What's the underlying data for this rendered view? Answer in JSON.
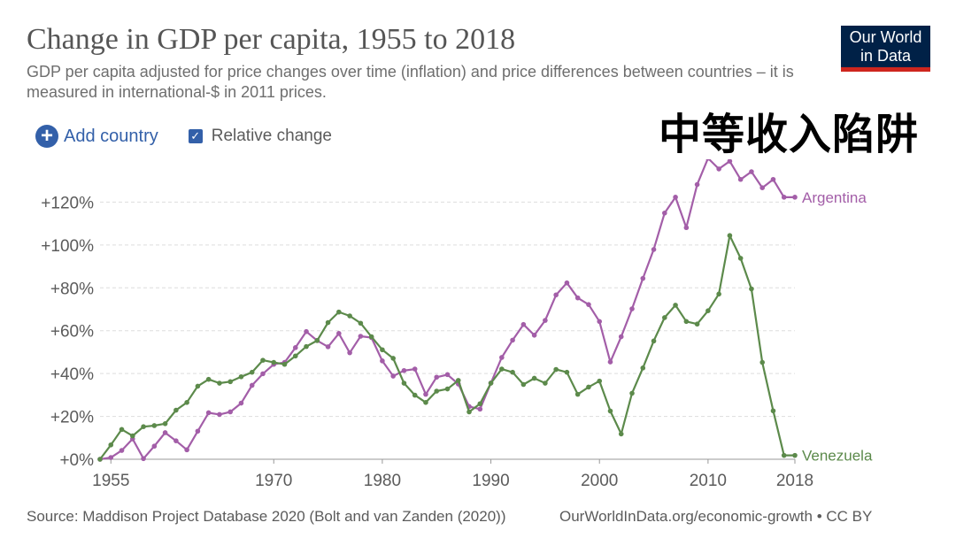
{
  "header": {
    "title": "Change in GDP per capita, 1955 to 2018",
    "subtitle": "GDP per capita adjusted for price changes over time (inflation) and price differences between countries – it is measured in international-$ in 2011 prices.",
    "logo_line1": "Our World",
    "logo_line2": "in Data"
  },
  "overlay_text": "中等收入陷阱",
  "controls": {
    "add_country_label": "Add country",
    "relative_change_label": "Relative change",
    "relative_change_checked": true
  },
  "footer": {
    "source": "Source: Maddison Project Database 2020 (Bolt and van Zanden (2020))",
    "url": "OurWorldInData.org/economic-growth • CC BY"
  },
  "colors": {
    "argentina": "#a35ea8",
    "venezuela": "#5c8a4b",
    "accent": "#3360a9"
  },
  "chart_data": {
    "type": "line",
    "x_range": [
      1954,
      2018
    ],
    "ylim": [
      0,
      140
    ],
    "y_ticks": [
      0,
      20,
      40,
      60,
      80,
      100,
      120
    ],
    "y_tick_labels": [
      "+0%",
      "+20%",
      "+40%",
      "+60%",
      "+80%",
      "+100%",
      "+120%"
    ],
    "x_ticks": [
      1955,
      1970,
      1980,
      1990,
      2000,
      2010,
      2018
    ],
    "x_tick_labels": [
      "1955",
      "1970",
      "1980",
      "1990",
      "2000",
      "2010",
      "2018"
    ],
    "grid": "horizontal-dashed",
    "x": [
      1954,
      1955,
      1956,
      1957,
      1958,
      1959,
      1960,
      1961,
      1962,
      1963,
      1964,
      1965,
      1966,
      1967,
      1968,
      1969,
      1970,
      1971,
      1972,
      1973,
      1974,
      1975,
      1976,
      1977,
      1978,
      1979,
      1980,
      1981,
      1982,
      1983,
      1984,
      1985,
      1986,
      1987,
      1988,
      1989,
      1990,
      1991,
      1992,
      1993,
      1994,
      1995,
      1996,
      1997,
      1998,
      1999,
      2000,
      2001,
      2002,
      2003,
      2004,
      2005,
      2006,
      2007,
      2008,
      2009,
      2010,
      2011,
      2012,
      2013,
      2014,
      2015,
      2016,
      2017,
      2018
    ],
    "series": [
      {
        "name": "Argentina",
        "values": [
          0,
          0.8,
          4.1,
          9.5,
          0.3,
          6.1,
          12.4,
          8.6,
          4.4,
          13.1,
          21.7,
          20.9,
          22.1,
          26.2,
          34.5,
          39.9,
          44.3,
          45.2,
          52.1,
          59.6,
          55.4,
          52.5,
          58.7,
          49.7,
          57.4,
          56.8,
          45.9,
          38.8,
          41.4,
          42.1,
          30.3,
          38.3,
          39.5,
          35.1,
          24.6,
          23.4,
          35.6,
          47.5,
          55.6,
          62.9,
          57.9,
          64.8,
          76.7,
          82.3,
          75.3,
          72.2,
          64.3,
          45.4,
          57.2,
          70.2,
          84.4,
          97.9,
          114.9,
          122.3,
          108.1,
          128.2,
          140.5,
          135.5,
          139.1,
          130.6,
          134.2,
          126.7,
          130.6,
          122.3,
          122.3
        ]
      },
      {
        "name": "Venezuela",
        "values": [
          0,
          6.7,
          13.9,
          10.9,
          15.2,
          15.7,
          16.6,
          22.9,
          26.5,
          34.1,
          37.3,
          35.5,
          36.2,
          38.5,
          40.6,
          46.2,
          45.2,
          44.3,
          48.2,
          52.6,
          55.4,
          63.8,
          68.7,
          66.9,
          63.5,
          57.2,
          51.1,
          47.1,
          35.5,
          29.9,
          26.5,
          31.8,
          32.8,
          36.8,
          22.1,
          25.9,
          35.5,
          42.1,
          40.6,
          34.9,
          37.8,
          35.5,
          41.9,
          40.6,
          30.3,
          33.7,
          36.5,
          22.5,
          11.8,
          30.8,
          42.6,
          55.2,
          66.1,
          71.9,
          64.3,
          63.1,
          69.3,
          77.1,
          104.4,
          93.8,
          79.5,
          45.2,
          22.6,
          1.8,
          1.8
        ]
      }
    ]
  }
}
